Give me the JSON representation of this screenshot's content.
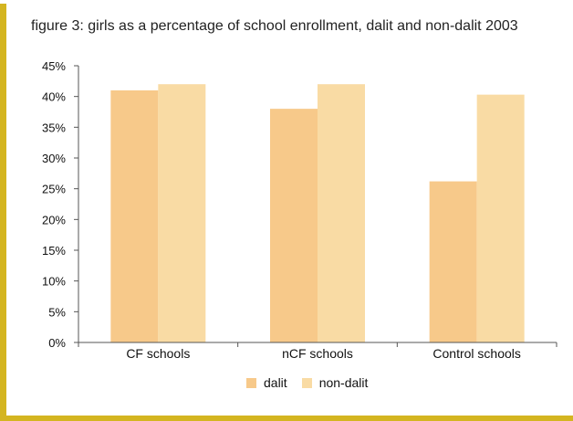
{
  "colors": {
    "frame": "#D4B520",
    "dalit": "#F7C98A",
    "non_dalit": "#F9DBA4",
    "axis": "#555555"
  },
  "chart_data": {
    "type": "bar",
    "title": "figure 3: girls as a percentage of school enrollment, dalit and non-dalit 2003",
    "categories": [
      "CF schools",
      "nCF schools",
      "Control schools"
    ],
    "series": [
      {
        "name": "dalit",
        "values": [
          41,
          38,
          26.2
        ]
      },
      {
        "name": "non-dalit",
        "values": [
          42,
          42,
          40.3
        ]
      }
    ],
    "yticks": [
      "0%",
      "5%",
      "10%",
      "15%",
      "20%",
      "25%",
      "30%",
      "35%",
      "40%",
      "45%"
    ],
    "ylim": [
      0,
      45
    ],
    "grid": false,
    "legend": "bottom"
  }
}
